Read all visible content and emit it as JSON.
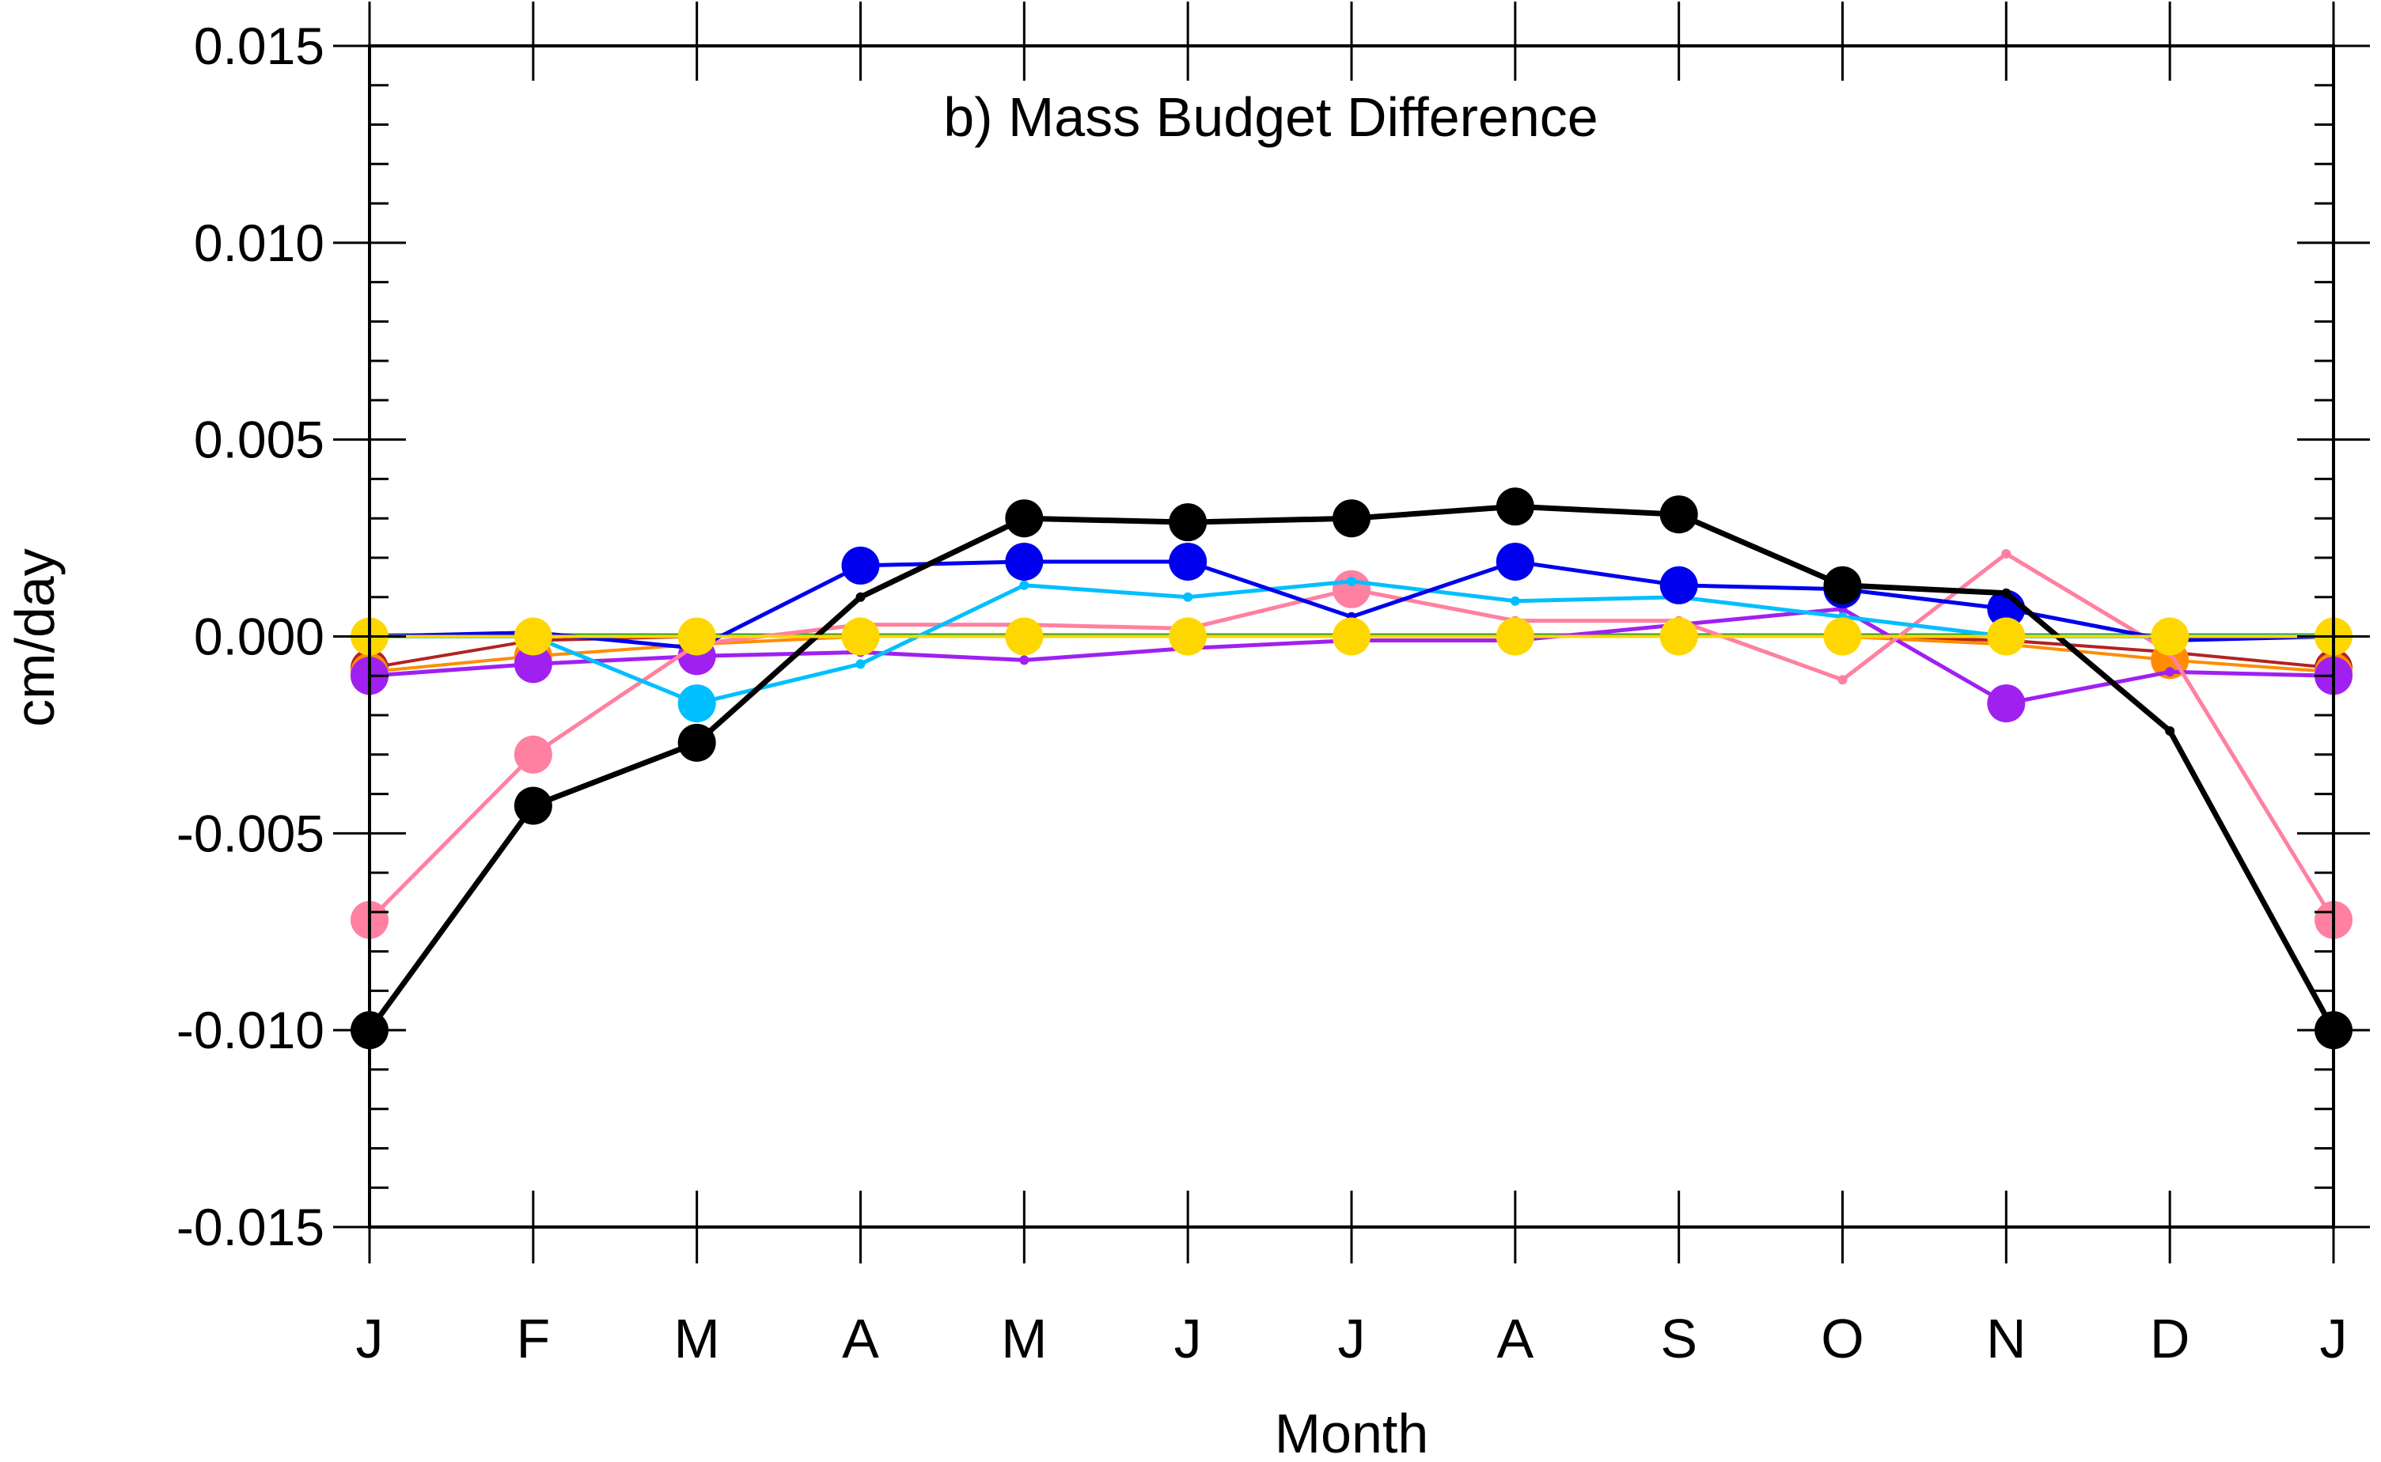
{
  "chart_data": {
    "type": "line",
    "title": "b) Mass Budget Difference",
    "xlabel": "Month",
    "ylabel": "cm/day",
    "categories": [
      "J",
      "F",
      "M",
      "A",
      "M",
      "J",
      "J",
      "A",
      "S",
      "O",
      "N",
      "D",
      "J"
    ],
    "ylim": [
      -0.015,
      0.015
    ],
    "yticks": [
      "0.015",
      "0.010",
      "0.005",
      "0.000",
      "-0.005",
      "-0.010",
      "-0.015"
    ],
    "ytick_values": [
      0.015,
      0.01,
      0.005,
      0.0,
      -0.005,
      -0.01,
      -0.015
    ],
    "grid": false,
    "zero_line": true,
    "series": [
      {
        "color": "#2ca02c",
        "width": 3,
        "markers": [],
        "values": [
          5e-05,
          5e-05,
          5e-05,
          5e-05,
          5e-05,
          5e-05,
          5e-05,
          5e-05,
          5e-05,
          5e-05,
          5e-05,
          5e-05,
          5e-05
        ]
      },
      {
        "color": "#b22222",
        "width": 4,
        "markers": [
          0,
          12
        ],
        "values": [
          -0.0008,
          -0.0001,
          0.0,
          0.0,
          0.0,
          0.0,
          0.0,
          0.0,
          0.0,
          0.0,
          -0.0001,
          -0.0004,
          -0.0008
        ]
      },
      {
        "color": "#ff8c00",
        "width": 4,
        "markers": [
          0,
          1,
          11,
          12
        ],
        "values": [
          -0.0009,
          -0.0005,
          -0.0002,
          0.0,
          0.0,
          0.0,
          0.0,
          0.0,
          0.0,
          0.0,
          -0.0002,
          -0.0006,
          -0.0009
        ]
      },
      {
        "color": "#a020f0",
        "width": 5,
        "markers": [
          0,
          1,
          2,
          10,
          12
        ],
        "values": [
          -0.001,
          -0.0007,
          -0.0005,
          -0.0004,
          -0.0006,
          -0.0003,
          -0.0001,
          -0.0001,
          0.0003,
          0.0007,
          -0.0017,
          -0.0009,
          -0.001
        ]
      },
      {
        "color": "#ff80a0",
        "width": 5,
        "markers": [
          0,
          1,
          6,
          12
        ],
        "values": [
          -0.0072,
          -0.003,
          -0.0002,
          0.0003,
          0.0003,
          0.0002,
          0.0012,
          0.0004,
          0.0004,
          -0.0011,
          0.0021,
          -0.0004,
          -0.0072
        ]
      },
      {
        "color": "#00bfff",
        "width": 5,
        "markers": [
          2
        ],
        "values": [
          0.0,
          0.0,
          -0.0017,
          -0.0007,
          0.0013,
          0.001,
          0.0014,
          0.0009,
          0.001,
          0.0005,
          0.0,
          0.0,
          0.0
        ]
      },
      {
        "color": "#0000ee",
        "width": 5,
        "markers": [
          3,
          4,
          5,
          7,
          8,
          9,
          10
        ],
        "values": [
          0.0,
          0.0001,
          -0.0003,
          0.0018,
          0.0019,
          0.0019,
          0.0005,
          0.0019,
          0.0013,
          0.0012,
          0.0007,
          -0.0001,
          0.0
        ]
      },
      {
        "color": "#000000",
        "width": 7,
        "markers": [
          0,
          1,
          2,
          4,
          5,
          6,
          7,
          8,
          9,
          12
        ],
        "values": [
          -0.01,
          -0.0043,
          -0.0027,
          0.001,
          0.003,
          0.0029,
          0.003,
          0.0033,
          0.0031,
          0.0013,
          0.0011,
          -0.0024,
          -0.01
        ]
      },
      {
        "color": "#ffd700",
        "width": 4,
        "markers": [
          0,
          1,
          2,
          3,
          4,
          5,
          6,
          7,
          8,
          9,
          10,
          11,
          12
        ],
        "values": [
          0.0,
          0.0,
          0.0,
          0.0,
          0.0,
          0.0,
          0.0,
          0.0,
          0.0,
          0.0,
          0.0,
          0.0,
          0.0
        ]
      }
    ]
  }
}
